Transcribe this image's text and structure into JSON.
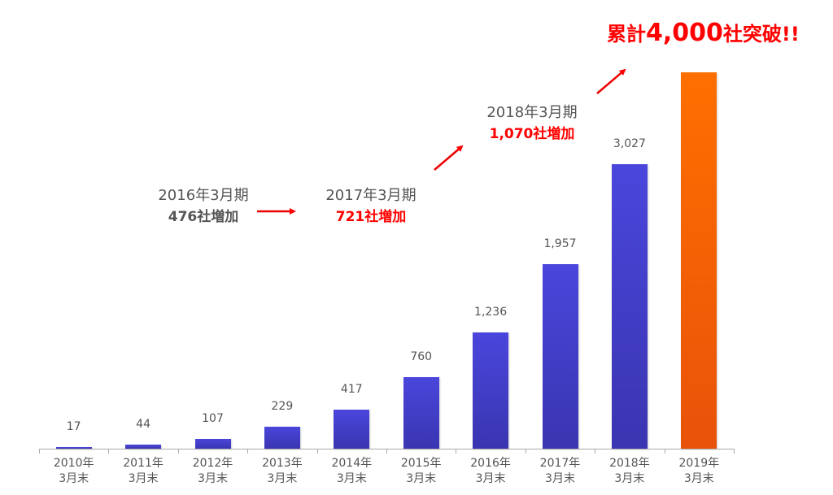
{
  "chart_data": {
    "type": "bar",
    "title": "",
    "xlabel": "",
    "ylabel": "",
    "categories": [
      "2010年 3月末",
      "2011年 3月末",
      "2012年 3月末",
      "2013年 3月末",
      "2014年 3月末",
      "2015年 3月末",
      "2016年 3月末",
      "2017年 3月末",
      "2018年 3月末",
      "2019年 3月末"
    ],
    "values": [
      17,
      44,
      107,
      229,
      417,
      760,
      1236,
      1957,
      3027,
      4000
    ],
    "data_labels": [
      "17",
      "44",
      "107",
      "229",
      "417",
      "760",
      "1,236",
      "1,957",
      "3,027",
      ""
    ],
    "highlight_index": 9,
    "ylim": [
      0,
      4000
    ],
    "grid": false,
    "legend": "none",
    "colors": {
      "bar": "#4340d0",
      "highlight": "#ff6a00",
      "annotation_red": "#ff0000",
      "text_gray": "#555555"
    },
    "annotations": [
      {
        "period": "2016年3月期",
        "increase": "476社増加",
        "color": "#555555"
      },
      {
        "period": "2017年3月期",
        "increase": "721社増加",
        "color": "#ff0000"
      },
      {
        "period": "2018年3月期",
        "increase": "1,070社増加",
        "color": "#ff0000"
      }
    ],
    "headline": {
      "prefix": "累計",
      "number": "4,000",
      "suffix": "社突破!!"
    }
  },
  "xlabels": [
    {
      "year": "2010年",
      "sub": "3月末"
    },
    {
      "year": "2011年",
      "sub": "3月末"
    },
    {
      "year": "2012年",
      "sub": "3月末"
    },
    {
      "year": "2013年",
      "sub": "3月末"
    },
    {
      "year": "2014年",
      "sub": "3月末"
    },
    {
      "year": "2015年",
      "sub": "3月末"
    },
    {
      "year": "2016年",
      "sub": "3月末"
    },
    {
      "year": "2017年",
      "sub": "3月末"
    },
    {
      "year": "2018年",
      "sub": "3月末"
    },
    {
      "year": "2019年",
      "sub": "3月末"
    }
  ]
}
